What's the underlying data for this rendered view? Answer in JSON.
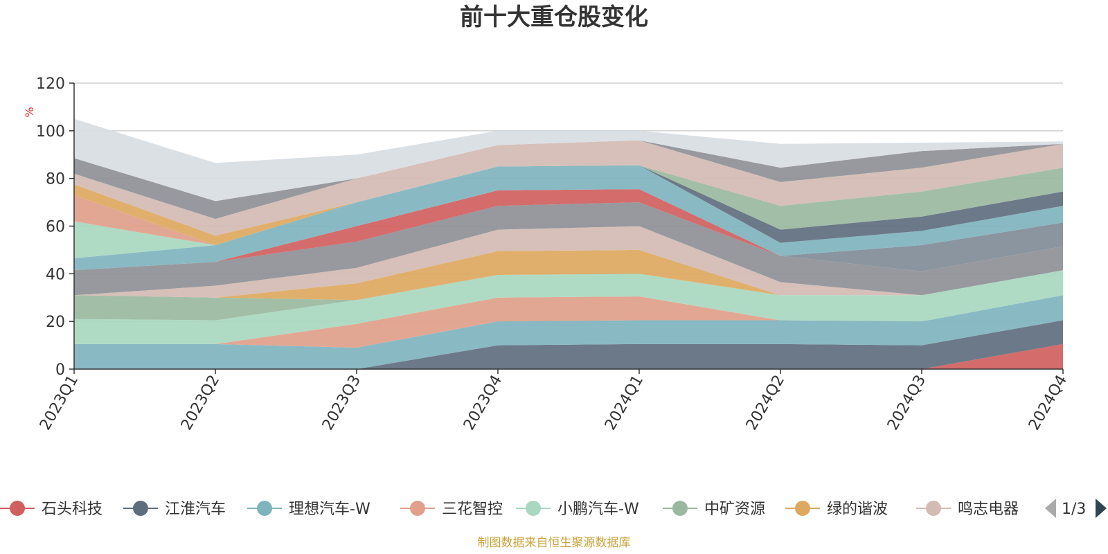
{
  "title": "前十大重仓股变化",
  "source_note": "制图数据来自恒生聚源数据库",
  "legend_page": "1/3",
  "chart_data": {
    "type": "area",
    "stacked": true,
    "x": [
      "2023Q1",
      "2023Q2",
      "2023Q3",
      "2023Q4",
      "2024Q1",
      "2024Q2",
      "2024Q3",
      "2024Q4"
    ],
    "ylabel": "%",
    "ylim": [
      0,
      120
    ],
    "yticks": [
      0,
      20,
      40,
      60,
      80,
      100,
      120
    ],
    "grid": true,
    "legend_position": "bottom",
    "series": [
      {
        "name": "石头科技",
        "color": "#d06060",
        "values": [
          0,
          0,
          0,
          0,
          0,
          0,
          0,
          10.5
        ]
      },
      {
        "name": "江淮汽车",
        "color": "#5f6e7e",
        "values": [
          0,
          0,
          0,
          10,
          10.5,
          10.5,
          10,
          10
        ]
      },
      {
        "name": "理想汽车-W",
        "color": "#7fb4bf",
        "values": [
          10.5,
          10.5,
          9,
          10,
          10,
          10,
          10,
          10.5
        ]
      },
      {
        "name": "三花智控",
        "color": "#e0a08a",
        "values": [
          0,
          0,
          10,
          10,
          10,
          0,
          0,
          0
        ]
      },
      {
        "name": "小鹏汽车-W",
        "color": "#a8d8c0",
        "values": [
          10.5,
          10,
          10,
          9.5,
          9.5,
          10.5,
          11,
          10.5
        ]
      },
      {
        "name": "中矿资源",
        "color": "#9ab8a0",
        "values": [
          10,
          9.5,
          0,
          0,
          0,
          0,
          0,
          0
        ]
      },
      {
        "name": "绿的谐波",
        "color": "#dda860",
        "values": [
          0,
          0,
          7,
          10,
          10,
          0,
          0,
          0
        ]
      },
      {
        "name": "鸣志电器",
        "color": "#d2bbb3",
        "values": [
          0,
          5,
          6.5,
          9,
          10,
          5.5,
          0,
          0
        ]
      },
      {
        "name": "",
        "color": "#8e9096",
        "values": [
          10.5,
          10,
          11,
          10,
          10,
          11,
          10,
          10
        ]
      },
      {
        "name": "",
        "color": "#808c98",
        "values": [
          0,
          0,
          0,
          0,
          0,
          0,
          11,
          10
        ]
      },
      {
        "name": "",
        "color": "#d06060",
        "values": [
          0,
          0,
          6.5,
          6.5,
          5.5,
          0,
          0,
          0
        ]
      },
      {
        "name": "",
        "color": "#7fb4bf",
        "values": [
          5,
          7,
          10,
          10,
          10,
          5.5,
          6,
          7
        ]
      },
      {
        "name": "",
        "color": "#a8d8c0",
        "values": [
          15.5,
          0,
          0,
          0,
          0,
          0,
          0,
          0
        ]
      },
      {
        "name": "",
        "color": "#e0a08a",
        "values": [
          11,
          0,
          0,
          0,
          0,
          0,
          0,
          0
        ]
      },
      {
        "name": "",
        "color": "#5f6e7e",
        "values": [
          0,
          0,
          0,
          0,
          0,
          5.5,
          6,
          6
        ]
      },
      {
        "name": "",
        "color": "#9ab8a0",
        "values": [
          0,
          0,
          0,
          0,
          0,
          10,
          10.5,
          10
        ]
      },
      {
        "name": "",
        "color": "#dda860",
        "values": [
          4.5,
          4,
          0,
          0,
          0,
          0,
          0,
          0
        ]
      },
      {
        "name": "",
        "color": "#d2bbb3",
        "values": [
          4.5,
          7,
          10,
          9,
          10.5,
          10,
          10,
          10
        ]
      },
      {
        "name": "",
        "color": "#8e9096",
        "values": [
          6.5,
          7.5,
          0,
          0,
          0,
          6,
          7,
          0
        ]
      },
      {
        "name": "",
        "color": "#d8dde3",
        "values": [
          16.5,
          16,
          10,
          6,
          4,
          10,
          3.5,
          1
        ]
      }
    ]
  }
}
